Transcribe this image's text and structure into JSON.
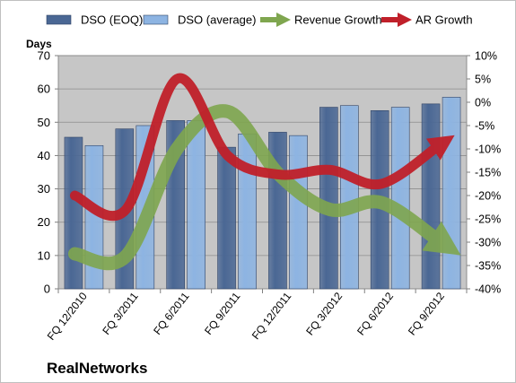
{
  "chart_data": {
    "type": "bar",
    "company": "RealNetworks",
    "left_axis_title": "Days",
    "categories": [
      "FQ 12/2010",
      "FQ 3/2011",
      "FQ 6/2011",
      "FQ 9/2011",
      "FQ 12/2011",
      "FQ 3/2012",
      "FQ 6/2012",
      "FQ 9/2012"
    ],
    "left_ylim": [
      0,
      70
    ],
    "left_ticks": [
      0,
      10,
      20,
      30,
      40,
      50,
      60,
      70
    ],
    "right_ylim": [
      -40,
      10
    ],
    "right_ticks": [
      -40,
      -35,
      -30,
      -25,
      -20,
      -15,
      -10,
      -5,
      0,
      5,
      10
    ],
    "right_tick_suffix": "%",
    "grid": true,
    "legend_position": "top",
    "series": [
      {
        "name": "DSO (EOQ)",
        "kind": "bar",
        "axis": "left",
        "color": "#4a6794",
        "values": [
          45.5,
          48,
          50.5,
          42.5,
          47,
          54.5,
          53.5,
          55.5
        ]
      },
      {
        "name": "DSO (average)",
        "kind": "bar",
        "axis": "left",
        "color": "#8db4e2",
        "values": [
          43,
          49,
          50.5,
          46.5,
          46,
          55,
          54.5,
          57.5
        ]
      },
      {
        "name": "Revenue Growth",
        "kind": "arrow",
        "axis": "right",
        "color": "#7fa64f",
        "values": [
          -32.5,
          -33,
          -10,
          -2,
          -15.5,
          -23,
          -21.5,
          -29.5
        ]
      },
      {
        "name": "AR Growth",
        "kind": "arrow",
        "axis": "right",
        "color": "#c0202a",
        "values": [
          -20,
          -23,
          5,
          -11.5,
          -15.5,
          -14.5,
          -17.5,
          -9.5
        ]
      }
    ]
  }
}
